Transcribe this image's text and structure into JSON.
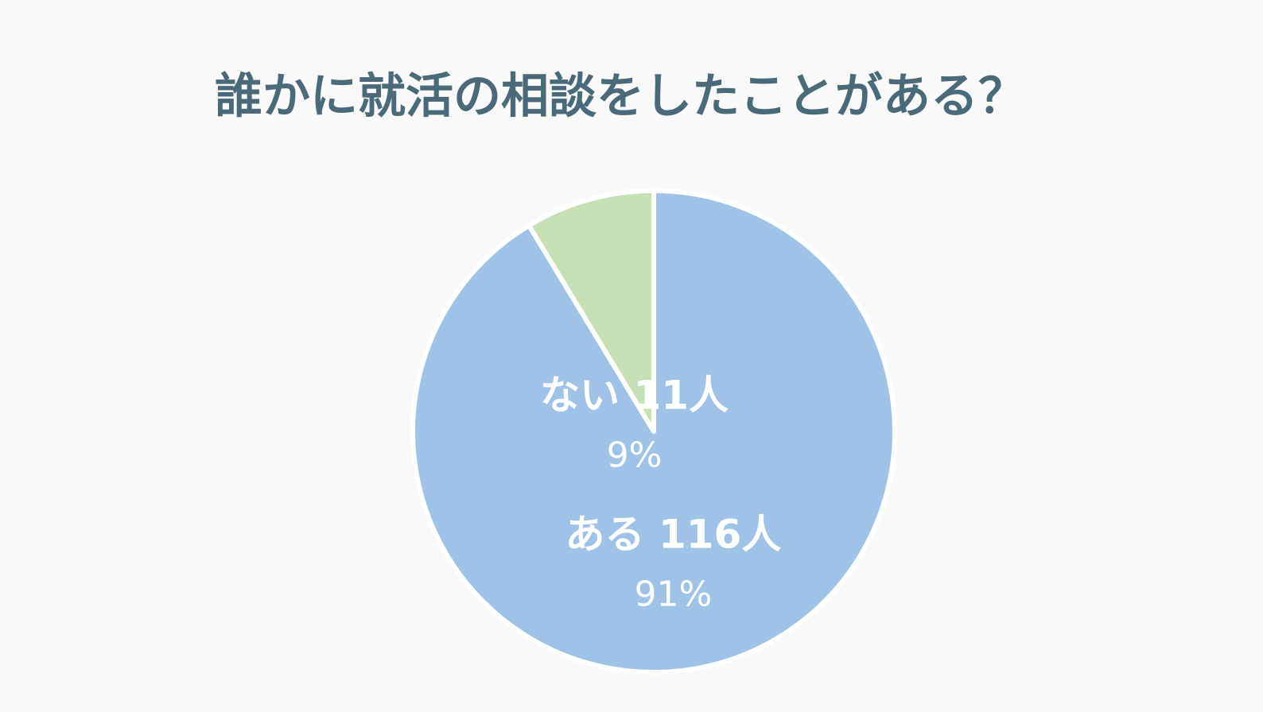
{
  "chart_data": {
    "type": "pie",
    "title": "誰かに就活の相談をしたことがある？",
    "categories": [
      "ある",
      "ない"
    ],
    "values": [
      116,
      11
    ],
    "value_labels": [
      "116人",
      "11人"
    ],
    "percents": [
      91,
      9
    ],
    "percent_labels": [
      "91%",
      "9%"
    ],
    "colors": [
      "#9fc3e6",
      "#c5e0b4"
    ]
  }
}
